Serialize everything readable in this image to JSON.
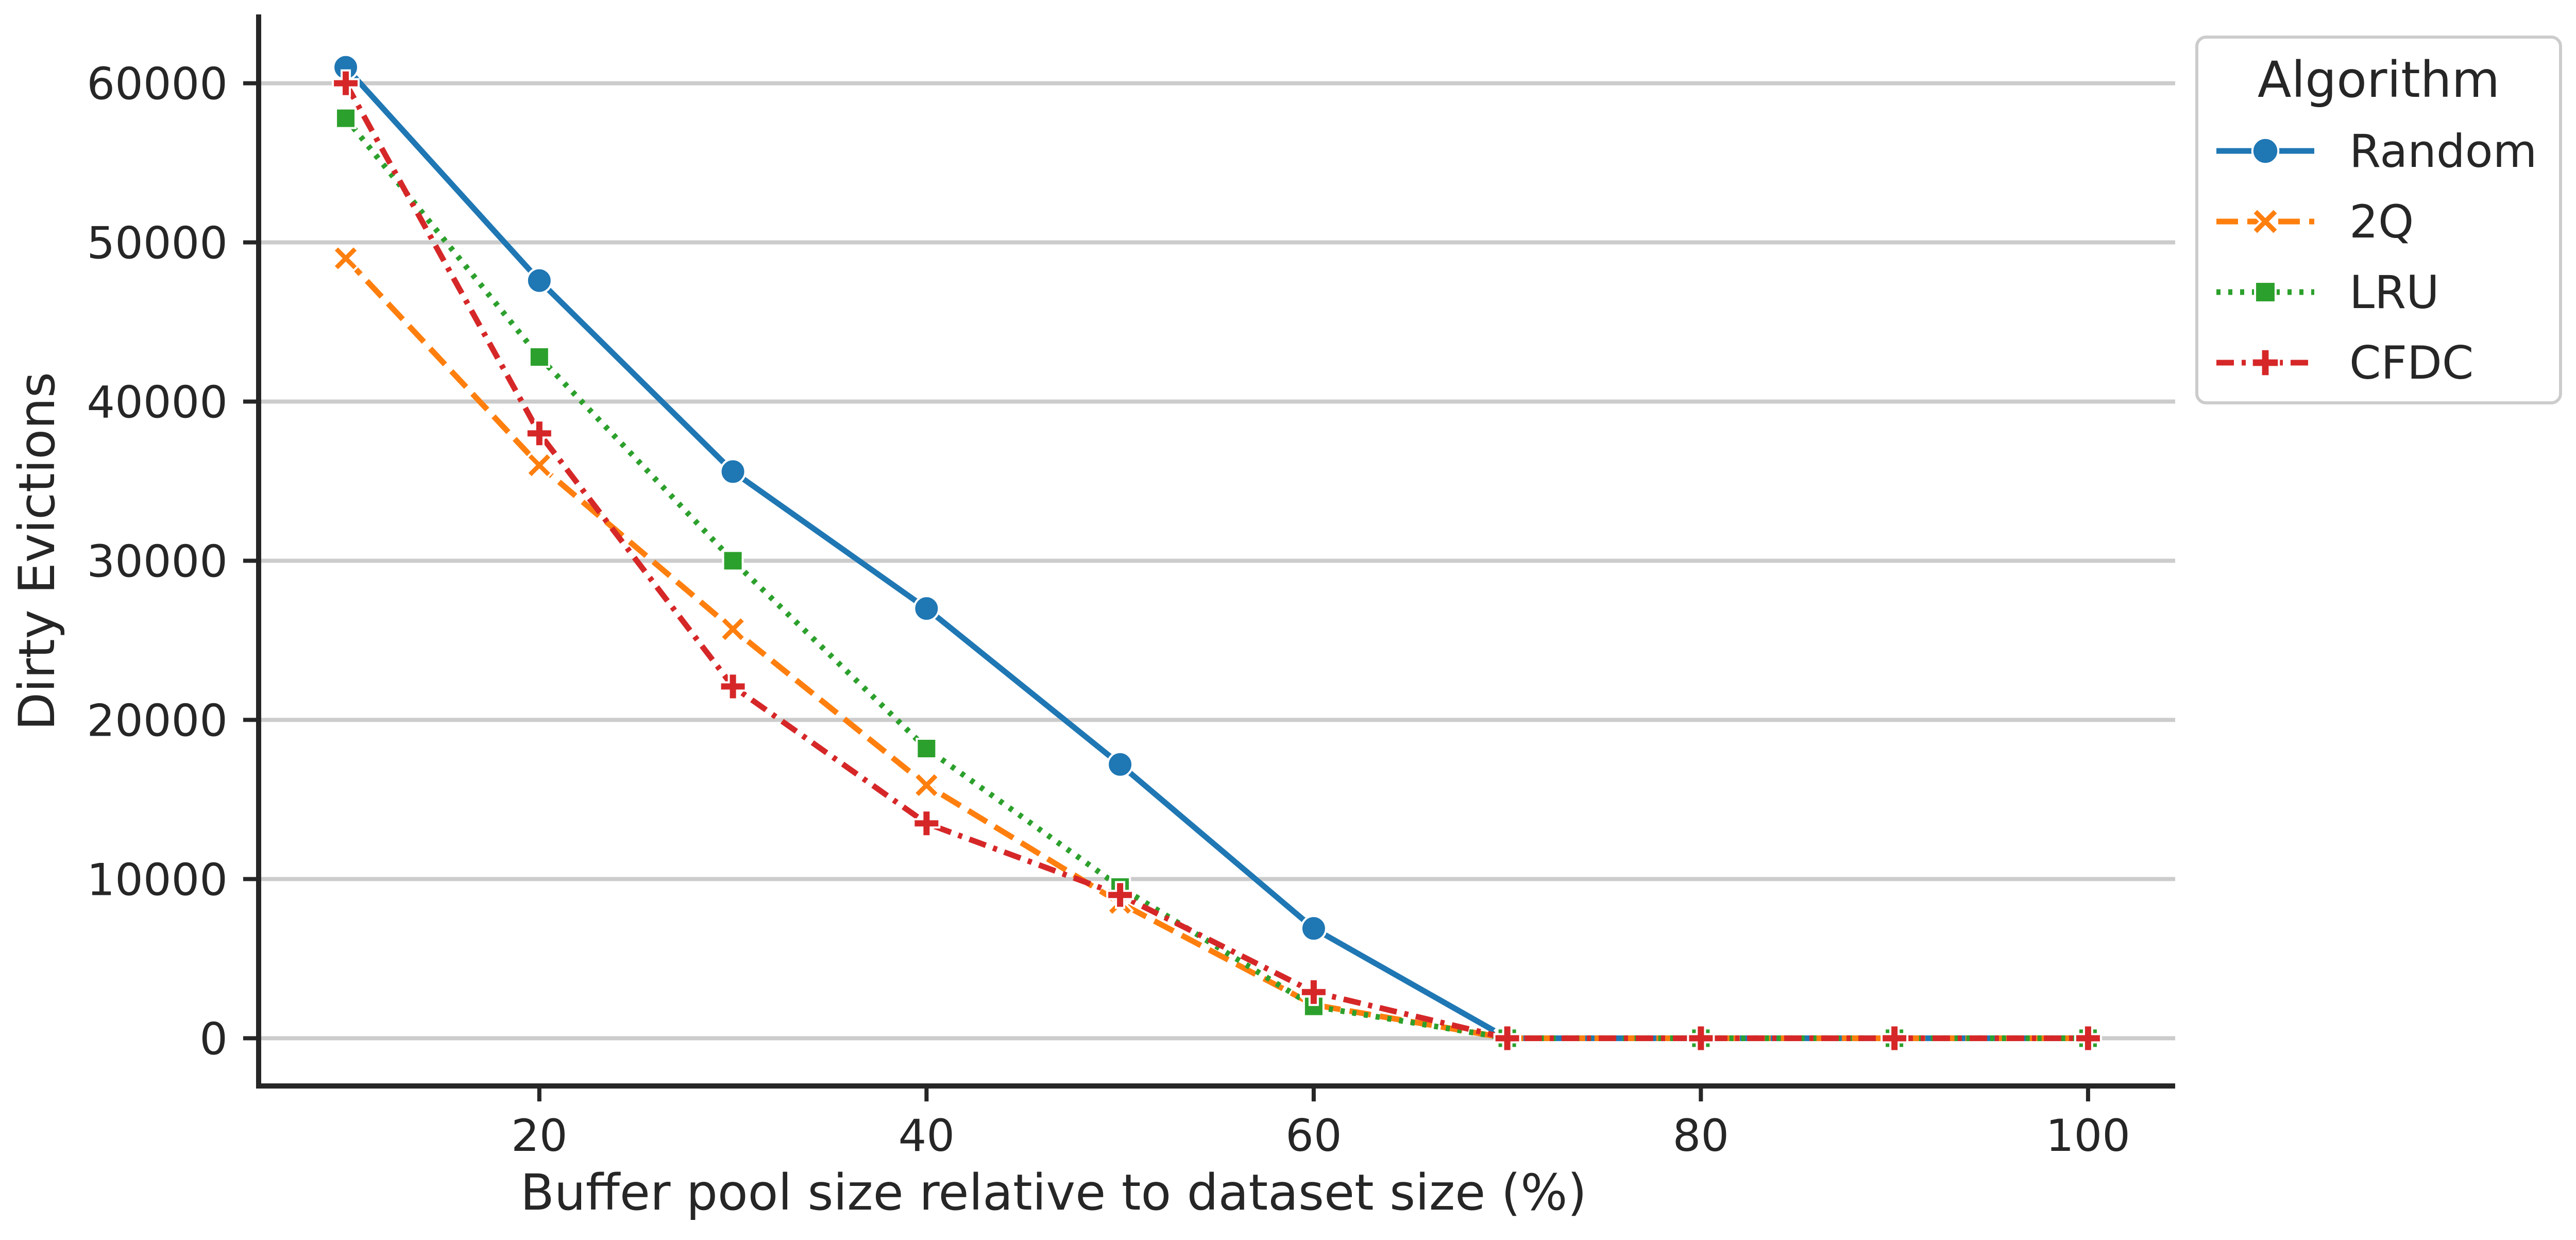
{
  "chart_data": {
    "type": "line",
    "title": "",
    "xlabel": "Buffer pool size relative to dataset size (%)",
    "ylabel": "Dirty Evictions",
    "x": [
      10,
      20,
      30,
      40,
      50,
      60,
      70,
      80,
      90,
      100
    ],
    "xlim": [
      5.5,
      104.5
    ],
    "ylim": [
      -3000,
      64000
    ],
    "xticks": [
      20,
      40,
      60,
      80,
      100
    ],
    "yticks": [
      0,
      10000,
      20000,
      30000,
      40000,
      50000,
      60000
    ],
    "grid": "horizontal",
    "legend": {
      "title": "Algorithm",
      "placement": "outside top-right"
    },
    "series": [
      {
        "name": "Random",
        "color": "#1f77b4",
        "line_style": "solid",
        "marker": "circle",
        "values": [
          61000,
          47600,
          35600,
          27000,
          17200,
          6900,
          0,
          0,
          0,
          0
        ]
      },
      {
        "name": "2Q",
        "color": "#ff7f0e",
        "line_style": "dashed",
        "marker": "x",
        "values": [
          49000,
          36000,
          25700,
          15900,
          8500,
          2100,
          0,
          0,
          0,
          0
        ]
      },
      {
        "name": "LRU",
        "color": "#2ca02c",
        "line_style": "dotted",
        "marker": "square",
        "values": [
          57800,
          42800,
          30000,
          18200,
          9500,
          2000,
          0,
          0,
          0,
          0
        ]
      },
      {
        "name": "CFDC",
        "color": "#d62728",
        "line_style": "dashdot",
        "marker": "plus",
        "values": [
          60000,
          38000,
          22100,
          13500,
          9000,
          2900,
          0,
          0,
          0,
          0
        ]
      }
    ]
  }
}
